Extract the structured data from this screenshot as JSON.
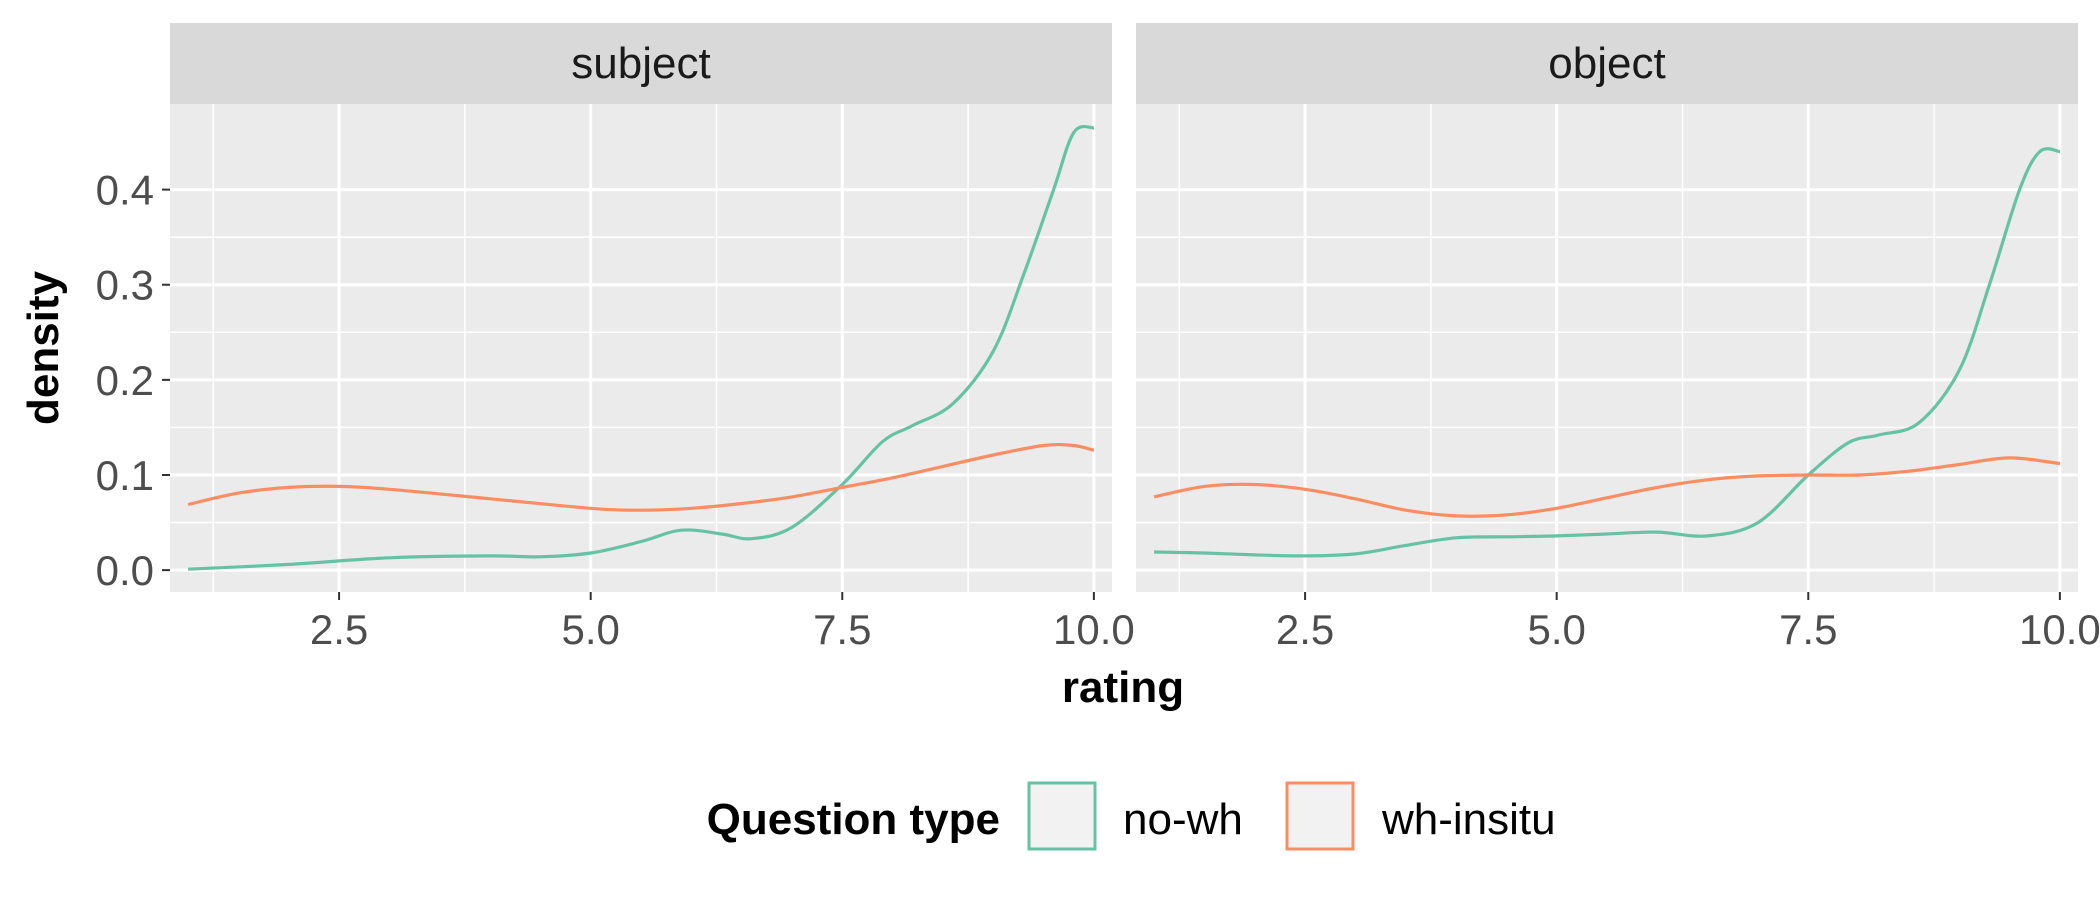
{
  "chart_data": {
    "type": "line",
    "subtype": "density",
    "xlabel": "rating",
    "ylabel": "density",
    "xlim": [
      0.82,
      10.18
    ],
    "ylim": [
      -0.023,
      0.49
    ],
    "x_ticks": [
      2.5,
      5.0,
      7.5,
      10.0
    ],
    "x_tick_labels": [
      "2.5",
      "5.0",
      "7.5",
      "10.0"
    ],
    "y_ticks": [
      0.0,
      0.1,
      0.2,
      0.3,
      0.4
    ],
    "y_tick_labels": [
      "0.0",
      "0.1",
      "0.2",
      "0.3",
      "0.4"
    ],
    "grid": true,
    "legend": {
      "title": "Question type",
      "position": "bottom",
      "entries": [
        {
          "label": "no-wh",
          "color": "#66c2a5"
        },
        {
          "label": "wh-insitu",
          "color": "#fc8d62"
        }
      ]
    },
    "panels": [
      {
        "strip": "subject",
        "series": [
          {
            "name": "no-wh",
            "color": "#66c2a5",
            "x": [
              1.0,
              2.0,
              3.0,
              4.0,
              4.5,
              5.0,
              5.5,
              5.9,
              6.3,
              6.6,
              7.0,
              7.5,
              7.9,
              8.2,
              8.6,
              9.0,
              9.3,
              9.6,
              9.8,
              10.0
            ],
            "y": [
              0.001,
              0.006,
              0.013,
              0.015,
              0.014,
              0.018,
              0.03,
              0.042,
              0.038,
              0.033,
              0.045,
              0.09,
              0.135,
              0.152,
              0.175,
              0.23,
              0.31,
              0.4,
              0.46,
              0.465
            ]
          },
          {
            "name": "wh-insitu",
            "color": "#fc8d62",
            "x": [
              1.0,
              1.5,
              2.0,
              2.5,
              3.0,
              4.0,
              5.0,
              5.5,
              6.0,
              6.5,
              7.0,
              7.5,
              8.0,
              8.5,
              9.0,
              9.5,
              9.8,
              10.0
            ],
            "y": [
              0.069,
              0.081,
              0.087,
              0.088,
              0.085,
              0.075,
              0.065,
              0.063,
              0.065,
              0.07,
              0.077,
              0.087,
              0.097,
              0.109,
              0.121,
              0.131,
              0.131,
              0.126
            ]
          }
        ]
      },
      {
        "strip": "object",
        "series": [
          {
            "name": "no-wh",
            "color": "#66c2a5",
            "x": [
              1.0,
              1.5,
              2.0,
              2.5,
              3.0,
              3.5,
              4.0,
              4.5,
              5.0,
              5.5,
              6.0,
              6.5,
              7.0,
              7.5,
              7.9,
              8.2,
              8.6,
              9.0,
              9.3,
              9.6,
              9.8,
              10.0
            ],
            "y": [
              0.019,
              0.018,
              0.016,
              0.015,
              0.017,
              0.026,
              0.034,
              0.035,
              0.036,
              0.038,
              0.04,
              0.036,
              0.05,
              0.1,
              0.134,
              0.142,
              0.155,
              0.21,
              0.3,
              0.4,
              0.44,
              0.44
            ]
          },
          {
            "name": "wh-insitu",
            "color": "#fc8d62",
            "x": [
              1.0,
              1.5,
              2.0,
              2.5,
              3.0,
              3.5,
              4.0,
              4.5,
              5.0,
              5.5,
              6.0,
              6.5,
              7.0,
              7.5,
              8.0,
              8.5,
              9.0,
              9.5,
              10.0
            ],
            "y": [
              0.077,
              0.088,
              0.09,
              0.085,
              0.075,
              0.063,
              0.057,
              0.058,
              0.065,
              0.076,
              0.087,
              0.095,
              0.099,
              0.1,
              0.1,
              0.104,
              0.111,
              0.118,
              0.112
            ]
          }
        ]
      }
    ]
  }
}
